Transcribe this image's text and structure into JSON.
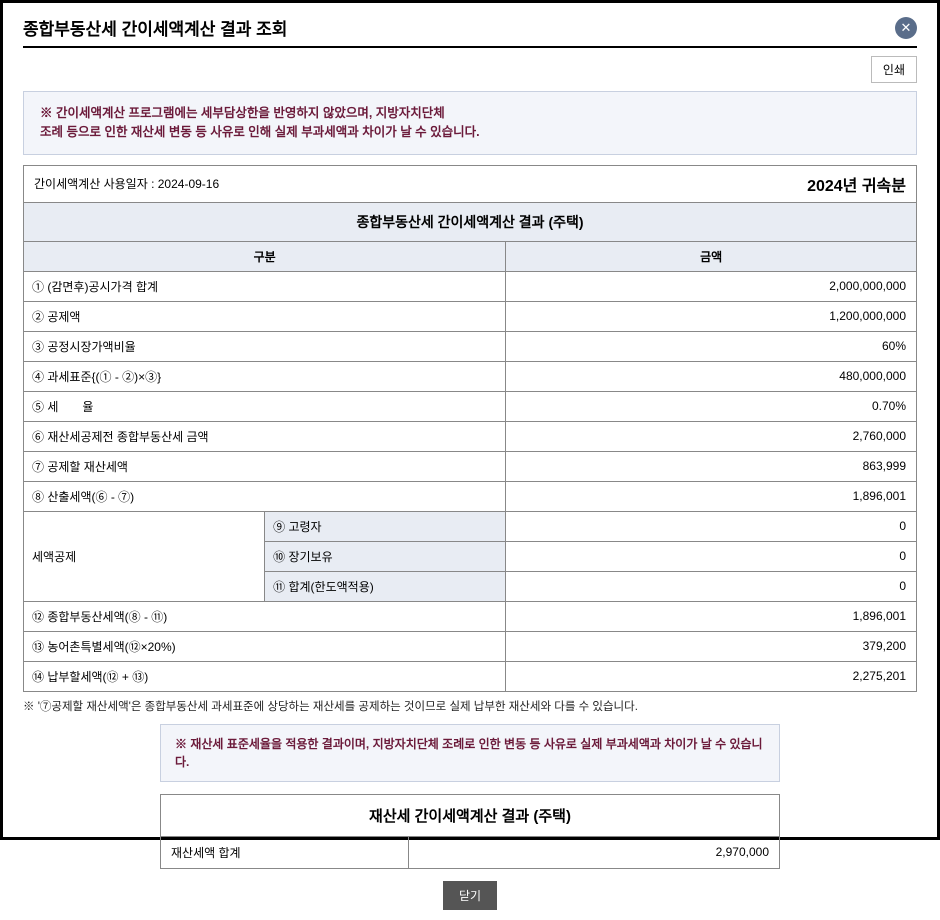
{
  "header": {
    "title": "종합부동산세 간이세액계산 결과 조회",
    "print_label": "인쇄"
  },
  "notice1": {
    "line1": "※ 간이세액계산 프로그램에는 세부담상한을 반영하지 않았으며, 지방자치단체",
    "line2": "조례 등으로 인한 재산세 변동 등 사유로 인해 실제 부과세액과 차이가 날 수 있습니다."
  },
  "date_row": {
    "usage_date_label": "간이세액계산 사용일자 :",
    "usage_date": "2024-09-16",
    "year_label": "2024년 귀속분"
  },
  "main_section": {
    "title": "종합부동산세 간이세액계산 결과 (주택)",
    "col_category": "구분",
    "col_amount": "금액",
    "rows": [
      {
        "num": "①",
        "label": "(감면후)공시가격 합계",
        "value": "2,000,000,000"
      },
      {
        "num": "②",
        "label": "공제액",
        "value": "1,200,000,000"
      },
      {
        "num": "③",
        "label": "공정시장가액비율",
        "value": "60%"
      },
      {
        "num": "④",
        "label": "과세표준{(① - ②)×③}",
        "value": "480,000,000"
      },
      {
        "num": "⑤",
        "label": "세　　율",
        "value": "0.70%"
      },
      {
        "num": "⑥",
        "label": "재산세공제전 종합부동산세 금액",
        "value": "2,760,000"
      },
      {
        "num": "⑦",
        "label": "공제할 재산세액",
        "value": "863,999"
      },
      {
        "num": "⑧",
        "label": "산출세액(⑥ - ⑦)",
        "value": "1,896,001"
      }
    ],
    "deduction_group_label": "세액공제",
    "deduction_rows": [
      {
        "num": "⑨",
        "label": "고령자",
        "value": "0"
      },
      {
        "num": "⑩",
        "label": "장기보유",
        "value": "0"
      },
      {
        "num": "⑪",
        "label": "합계(한도액적용)",
        "value": "0"
      }
    ],
    "bottom_rows": [
      {
        "num": "⑫",
        "label": "종합부동산세액(⑧ - ⑪)",
        "value": "1,896,001"
      },
      {
        "num": "⑬",
        "label": "농어촌특별세액(⑫×20%)",
        "value": "379,200"
      },
      {
        "num": "⑭",
        "label": "납부할세액(⑫ + ⑬)",
        "value": "2,275,201"
      }
    ]
  },
  "footnote": "※ '⑦공제할 재산세액'은 종합부동산세 과세표준에 상당하는 재산세를 공제하는 것이므로 실제 납부한 재산세와 다를 수 있습니다.",
  "notice2": "※ 재산세 표준세율을 적용한 결과이며, 지방자치단체 조례로 인한 변동 등 사유로 실제 부과세액과 차이가 날 수 있습니다.",
  "sub_section": {
    "title": "재산세 간이세액계산 결과 (주택)",
    "row_label": "재산세액 합계",
    "row_value": "2,970,000"
  },
  "close_label": "닫기"
}
